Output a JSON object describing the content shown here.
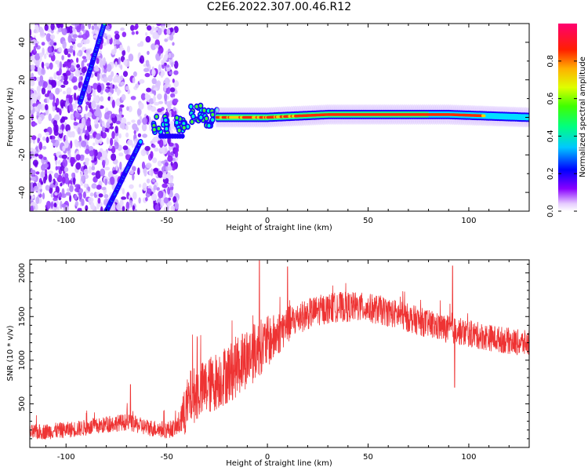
{
  "title": "C2E6.2022.307.00.46.R12",
  "chart_data": [
    {
      "type": "heatmap",
      "xlabel": "Height of straight line (km)",
      "ylabel": "Frequency (Hz)",
      "xlim": [
        -118,
        130
      ],
      "ylim": [
        -50,
        50
      ],
      "xticks": [
        -100,
        -50,
        0,
        50,
        100
      ],
      "yticks": [
        -40,
        -20,
        0,
        20,
        40
      ],
      "colorbar": {
        "label": "Normalized spectral amplitude",
        "range": [
          0,
          1
        ],
        "ticks": [
          "0.0",
          "0.2",
          "0.4",
          "0.6",
          "0.8"
        ]
      },
      "features": [
        {
          "name": "noise region",
          "x_range": [
            -118,
            -45
          ]
        },
        {
          "name": "diagonal streak upper",
          "points": [
            [
              -93,
              8
            ],
            [
              -81,
              50
            ]
          ]
        },
        {
          "name": "diagonal streak lower",
          "points": [
            [
              -80,
              -50
            ],
            [
              -63,
              -13
            ]
          ]
        },
        {
          "name": "transition cluster",
          "points": [
            [
              -53,
              -4
            ],
            [
              -43,
              -4
            ],
            [
              -35,
              2
            ],
            [
              -28,
              0
            ]
          ]
        },
        {
          "name": "horizontal band",
          "points": [
            [
              -25,
              0
            ],
            [
              0,
              0
            ],
            [
              30,
              1.5
            ],
            [
              90,
              1.5
            ],
            [
              130,
              0
            ]
          ]
        }
      ],
      "grid": false
    },
    {
      "type": "line",
      "xlabel": "Height of straight line (km)",
      "ylabel": "SNR (10 * v/v)",
      "xlim": [
        -118,
        130
      ],
      "ylim": [
        0,
        2150
      ],
      "xticks": [
        -100,
        -50,
        0,
        50,
        100
      ],
      "yticks": [
        500,
        1000,
        1500,
        2000
      ],
      "color": "#ee3333",
      "envelope": {
        "x": [
          -118,
          -100,
          -85,
          -75,
          -70,
          -60,
          -50,
          -45,
          -41,
          -38,
          -33,
          -28,
          -23,
          -18,
          -12,
          -6,
          -2,
          3,
          8,
          15,
          25,
          35,
          45,
          55,
          65,
          75,
          85,
          95,
          105,
          115,
          125,
          130
        ],
        "y": [
          170,
          200,
          240,
          280,
          290,
          230,
          200,
          230,
          400,
          580,
          650,
          720,
          800,
          870,
          1000,
          1100,
          1180,
          1250,
          1370,
          1480,
          1570,
          1610,
          1610,
          1580,
          1520,
          1450,
          1380,
          1330,
          1280,
          1240,
          1200,
          1190
        ]
      },
      "noise_amplitude": {
        "x": [
          -118,
          -45,
          -40,
          -10,
          0,
          15,
          130
        ],
        "y": [
          90,
          100,
          320,
          360,
          300,
          180,
          150
        ]
      },
      "spikes": [
        {
          "x": -68,
          "y": 720
        },
        {
          "x": -4,
          "y": 2140
        },
        {
          "x": 10,
          "y": 2070
        },
        {
          "x": 92,
          "y": 2080
        },
        {
          "x": 93,
          "y": 690
        }
      ],
      "grid": false
    }
  ]
}
